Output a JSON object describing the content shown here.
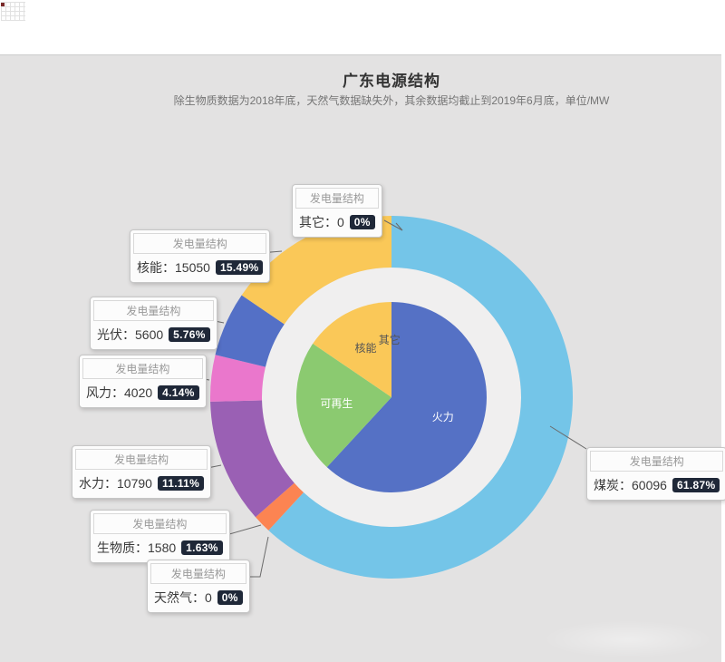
{
  "header": {
    "title": "广东电源结构",
    "subtitle": "除生物质数据为2018年底，天然气数据缺失外，其余数据均截止到2019年6月底，单位/MW"
  },
  "tooltip_header": "发电量结构",
  "colors": {
    "panel_bg": "#e3e2e2",
    "gap_ring": "#f0efef",
    "badge_bg": "#1f2838",
    "leader_line": "#6b6b6b"
  },
  "chart_data": {
    "type": "pie",
    "title": "广东电源结构",
    "subtitle": "除生物质数据为2018年底，天然气数据缺失外，其余数据均截止到2019年6月底，单位/MW",
    "unit": "MW",
    "legend": "none",
    "layout_hint": "nested donut: inner pie = category groups, outer ring = fuel types, slices clockwise from 12 o'clock",
    "rings": {
      "inner": {
        "slices": [
          {
            "id": "thermal",
            "label": "火力",
            "pct": 61.87,
            "color": "#5571c5",
            "label_color": "#ffffff"
          },
          {
            "id": "renewable",
            "label": "可再生",
            "pct": 22.64,
            "color": "#8bca70",
            "label_color": "#ffffff"
          },
          {
            "id": "nuclear",
            "label": "核能",
            "pct": 15.49,
            "color": "#fac858",
            "label_color": "#555555"
          },
          {
            "id": "other",
            "label": "其它",
            "pct": 0,
            "color": "#fac858",
            "label_color": "#555555"
          }
        ]
      },
      "outer": {
        "slices": [
          {
            "id": "coal",
            "label": "煤炭",
            "value": 60096,
            "pct": 61.87,
            "color": "#74c5e8"
          },
          {
            "id": "gas",
            "label": "天然气",
            "value": 0,
            "pct": 0,
            "color": "#fc8452"
          },
          {
            "id": "biomass",
            "label": "生物质",
            "value": 1580,
            "pct": 1.63,
            "color": "#fc8452"
          },
          {
            "id": "hydro",
            "label": "水力",
            "value": 10790,
            "pct": 11.11,
            "color": "#9a60b4"
          },
          {
            "id": "wind",
            "label": "风力",
            "value": 4020,
            "pct": 4.14,
            "color": "#ea77cc"
          },
          {
            "id": "solar",
            "label": "光伏",
            "value": 5600,
            "pct": 5.76,
            "color": "#5470c6"
          },
          {
            "id": "nuclear",
            "label": "核能",
            "value": 15050,
            "pct": 15.49,
            "color": "#fac858"
          },
          {
            "id": "other",
            "label": "其它",
            "value": 0,
            "pct": 0,
            "color": "#fac858"
          }
        ]
      }
    },
    "callouts": [
      {
        "id": "other",
        "series": "发电量结构",
        "label": "其它",
        "value": "0",
        "pct": "0%"
      },
      {
        "id": "nuclear",
        "series": "发电量结构",
        "label": "核能",
        "value": "15050",
        "pct": "15.49%"
      },
      {
        "id": "solar",
        "series": "发电量结构",
        "label": "光伏",
        "value": "5600",
        "pct": "5.76%"
      },
      {
        "id": "wind",
        "series": "发电量结构",
        "label": "风力",
        "value": "4020",
        "pct": "4.14%"
      },
      {
        "id": "hydro",
        "series": "发电量结构",
        "label": "水力",
        "value": "10790",
        "pct": "11.11%"
      },
      {
        "id": "biomass",
        "series": "发电量结构",
        "label": "生物质",
        "value": "1580",
        "pct": "1.63%"
      },
      {
        "id": "gas",
        "series": "发电量结构",
        "label": "天然气",
        "value": "0",
        "pct": "0%"
      },
      {
        "id": "coal",
        "series": "发电量结构",
        "label": "煤炭",
        "value": "60096",
        "pct": "61.87%"
      }
    ]
  }
}
